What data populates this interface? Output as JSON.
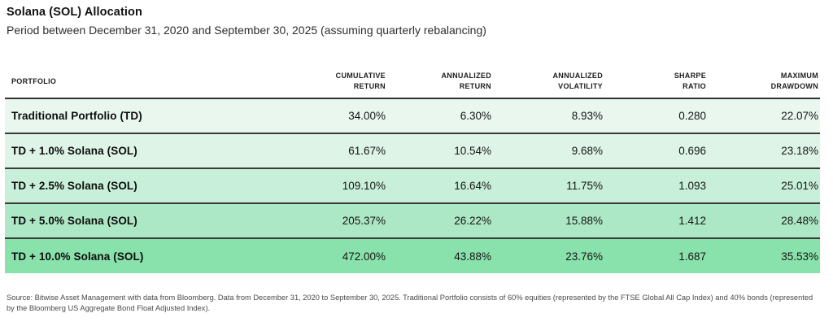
{
  "header": {
    "title": "Solana (SOL) Allocation",
    "subtitle": "Period between December 31, 2020 and September 30, 2025 (assuming quarterly rebalancing)"
  },
  "table": {
    "columns": {
      "portfolio": "PORTFOLIO",
      "cumulative_return": "CUMULATIVE\nRETURN",
      "annualized_return": "ANNUALIZED\nRETURN",
      "annualized_volatility": "ANNUALIZED\nVOLATILITY",
      "sharpe_ratio": "SHARPE\nRATIO",
      "maximum_drawdown": "MAXIMUM\nDRAWDOWN"
    },
    "rows": [
      {
        "portfolio": "Traditional Portfolio (TD)",
        "cumulative_return": "34.00%",
        "annualized_return": "6.30%",
        "annualized_volatility": "8.93%",
        "sharpe_ratio": "0.280",
        "maximum_drawdown": "22.07%",
        "bg": "#e9f7ef"
      },
      {
        "portfolio": "TD + 1.0% Solana (SOL)",
        "cumulative_return": "61.67%",
        "annualized_return": "10.54%",
        "annualized_volatility": "9.68%",
        "sharpe_ratio": "0.696",
        "maximum_drawdown": "23.18%",
        "bg": "#def4e7"
      },
      {
        "portfolio": "TD + 2.5% Solana (SOL)",
        "cumulative_return": "109.10%",
        "annualized_return": "16.64%",
        "annualized_volatility": "11.75%",
        "sharpe_ratio": "1.093",
        "maximum_drawdown": "25.01%",
        "bg": "#c8efd9"
      },
      {
        "portfolio": "TD + 5.0% Solana (SOL)",
        "cumulative_return": "205.37%",
        "annualized_return": "26.22%",
        "annualized_volatility": "15.88%",
        "sharpe_ratio": "1.412",
        "maximum_drawdown": "28.48%",
        "bg": "#ace8c5"
      },
      {
        "portfolio": "TD + 10.0% Solana (SOL)",
        "cumulative_return": "472.00%",
        "annualized_return": "43.88%",
        "annualized_volatility": "23.76%",
        "sharpe_ratio": "1.687",
        "maximum_drawdown": "35.53%",
        "bg": "#89e1ab"
      }
    ]
  },
  "footer": {
    "source": "Source: Bitwise Asset Management with data from Bloomberg. Data from December 31, 2020 to September 30, 2025. Traditional Portfolio consists of 60% equities (represented by the FTSE Global All Cap Index) and 40% bonds (represented by the Bloomberg US Aggregate Bond Float Adjusted Index)."
  },
  "chart_data": {
    "type": "table",
    "title": "Solana (SOL) Allocation",
    "subtitle": "Period between December 31, 2020 and September 30, 2025 (assuming quarterly rebalancing)",
    "columns": [
      "Portfolio",
      "Cumulative Return",
      "Annualized Return",
      "Annualized Volatility",
      "Sharpe Ratio",
      "Maximum Drawdown"
    ],
    "rows": [
      [
        "Traditional Portfolio (TD)",
        "34.00%",
        "6.30%",
        "8.93%",
        "0.280",
        "22.07%"
      ],
      [
        "TD + 1.0% Solana (SOL)",
        "61.67%",
        "10.54%",
        "9.68%",
        "0.696",
        "23.18%"
      ],
      [
        "TD + 2.5% Solana (SOL)",
        "109.10%",
        "16.64%",
        "11.75%",
        "1.093",
        "25.01%"
      ],
      [
        "TD + 5.0% Solana (SOL)",
        "205.37%",
        "26.22%",
        "15.88%",
        "1.412",
        "28.48%"
      ],
      [
        "TD + 10.0% Solana (SOL)",
        "472.00%",
        "43.88%",
        "23.76%",
        "1.687",
        "35.53%"
      ]
    ],
    "numeric": {
      "cumulative_return_pct": [
        34.0,
        61.67,
        109.1,
        205.37,
        472.0
      ],
      "annualized_return_pct": [
        6.3,
        10.54,
        16.64,
        26.22,
        43.88
      ],
      "annualized_volatility_pct": [
        8.93,
        9.68,
        11.75,
        15.88,
        23.76
      ],
      "sharpe_ratio": [
        0.28,
        0.696,
        1.093,
        1.412,
        1.687
      ],
      "maximum_drawdown_pct": [
        22.07,
        23.18,
        25.01,
        28.48,
        35.53
      ]
    },
    "row_shading_hex": [
      "#e9f7ef",
      "#def4e7",
      "#c8efd9",
      "#ace8c5",
      "#89e1ab"
    ]
  }
}
